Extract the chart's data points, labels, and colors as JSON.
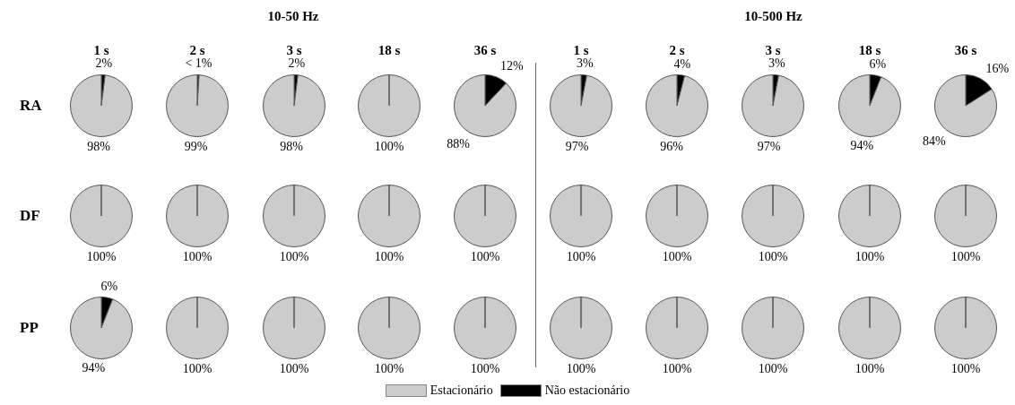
{
  "chart_data": [
    {
      "type": "pie",
      "title": "1 s",
      "annotations": [
        "RA"
      ],
      "legend": "bottom",
      "categories": [
        "Estacionário",
        "Não estacionário"
      ],
      "values": [
        98,
        2
      ],
      "colors": [
        "#cccccc",
        "#000000"
      ],
      "value_labels": [
        "98%",
        "2%"
      ]
    },
    {
      "type": "pie",
      "title": "2 s",
      "values": [
        99,
        1
      ],
      "colors": [
        "#cccccc",
        "#000000"
      ],
      "value_labels": [
        "99%",
        "< 1%"
      ]
    },
    {
      "type": "pie",
      "subtitle": "10-50 Hz",
      "title": "3 s",
      "values": [
        98,
        2
      ],
      "colors": [
        "#cccccc",
        "#000000"
      ],
      "value_labels": [
        "98%",
        "2%"
      ]
    },
    {
      "type": "pie",
      "title": "18 s",
      "values": [
        100,
        0
      ],
      "colors": [
        "#cccccc",
        "#000000"
      ],
      "value_labels": [
        "100%",
        null
      ]
    },
    {
      "type": "pie",
      "title": "36 s",
      "values": [
        88,
        12
      ],
      "colors": [
        "#cccccc",
        "#000000"
      ],
      "value_labels": [
        "88%",
        "12%"
      ]
    },
    {
      "type": "pie",
      "title": "1 s",
      "values": [
        97,
        3
      ],
      "colors": [
        "#cccccc",
        "#000000"
      ],
      "value_labels": [
        "97%",
        "3%"
      ]
    },
    {
      "type": "pie",
      "title": "2 s",
      "values": [
        96,
        4
      ],
      "colors": [
        "#cccccc",
        "#000000"
      ],
      "value_labels": [
        "96%",
        "4%"
      ]
    },
    {
      "type": "pie",
      "subtitle": "10-500 Hz",
      "title": "3 s",
      "values": [
        97,
        3
      ],
      "colors": [
        "#cccccc",
        "#000000"
      ],
      "value_labels": [
        "97%",
        "3%"
      ]
    },
    {
      "type": "pie",
      "title": "18 s",
      "values": [
        94,
        6
      ],
      "colors": [
        "#cccccc",
        "#000000"
      ],
      "value_labels": [
        "94%",
        "6%"
      ]
    },
    {
      "type": "pie",
      "title": "36 s",
      "values": [
        84,
        16
      ],
      "colors": [
        "#cccccc",
        "#000000"
      ],
      "value_labels": [
        "84%",
        "16%"
      ]
    },
    {
      "type": "pie",
      "annotations": [
        "DF"
      ],
      "values": [
        100,
        0
      ],
      "colors": [
        "#cccccc",
        "#000000"
      ],
      "value_labels": [
        "100%",
        null
      ]
    },
    {
      "type": "pie",
      "values": [
        100,
        0
      ],
      "colors": [
        "#cccccc",
        "#000000"
      ],
      "value_labels": [
        "100%",
        null
      ]
    },
    {
      "type": "pie",
      "values": [
        100,
        0
      ],
      "colors": [
        "#cccccc",
        "#000000"
      ],
      "value_labels": [
        "100%",
        null
      ]
    },
    {
      "type": "pie",
      "values": [
        100,
        0
      ],
      "colors": [
        "#cccccc",
        "#000000"
      ],
      "value_labels": [
        "100%",
        null
      ]
    },
    {
      "type": "pie",
      "values": [
        100,
        0
      ],
      "colors": [
        "#cccccc",
        "#000000"
      ],
      "value_labels": [
        "100%",
        null
      ]
    },
    {
      "type": "pie",
      "values": [
        100,
        0
      ],
      "colors": [
        "#cccccc",
        "#000000"
      ],
      "value_labels": [
        "100%",
        null
      ]
    },
    {
      "type": "pie",
      "values": [
        100,
        0
      ],
      "colors": [
        "#cccccc",
        "#000000"
      ],
      "value_labels": [
        "100%",
        null
      ]
    },
    {
      "type": "pie",
      "values": [
        100,
        0
      ],
      "colors": [
        "#cccccc",
        "#000000"
      ],
      "value_labels": [
        "100%",
        null
      ]
    },
    {
      "type": "pie",
      "values": [
        100,
        0
      ],
      "colors": [
        "#cccccc",
        "#000000"
      ],
      "value_labels": [
        "100%",
        null
      ]
    },
    {
      "type": "pie",
      "values": [
        100,
        0
      ],
      "colors": [
        "#cccccc",
        "#000000"
      ],
      "value_labels": [
        "100%",
        null
      ]
    },
    {
      "type": "pie",
      "annotations": [
        "PP"
      ],
      "values": [
        94,
        6
      ],
      "colors": [
        "#cccccc",
        "#000000"
      ],
      "value_labels": [
        "94%",
        "6%"
      ]
    },
    {
      "type": "pie",
      "values": [
        100,
        0
      ],
      "colors": [
        "#cccccc",
        "#000000"
      ],
      "value_labels": [
        "100%",
        null
      ]
    },
    {
      "type": "pie",
      "values": [
        100,
        0
      ],
      "colors": [
        "#cccccc",
        "#000000"
      ],
      "value_labels": [
        "100%",
        null
      ]
    },
    {
      "type": "pie",
      "values": [
        100,
        0
      ],
      "colors": [
        "#cccccc",
        "#000000"
      ],
      "value_labels": [
        "100%",
        null
      ]
    },
    {
      "type": "pie",
      "values": [
        100,
        0
      ],
      "colors": [
        "#cccccc",
        "#000000"
      ],
      "value_labels": [
        "100%",
        null
      ]
    },
    {
      "type": "pie",
      "values": [
        100,
        0
      ],
      "colors": [
        "#cccccc",
        "#000000"
      ],
      "value_labels": [
        "100%",
        null
      ]
    },
    {
      "type": "pie",
      "values": [
        100,
        0
      ],
      "colors": [
        "#cccccc",
        "#000000"
      ],
      "value_labels": [
        "100%",
        null
      ]
    },
    {
      "type": "pie",
      "values": [
        100,
        0
      ],
      "colors": [
        "#cccccc",
        "#000000"
      ],
      "value_labels": [
        "100%",
        null
      ]
    },
    {
      "type": "pie",
      "values": [
        100,
        0
      ],
      "colors": [
        "#cccccc",
        "#000000"
      ],
      "value_labels": [
        "100%",
        null
      ]
    },
    {
      "type": "pie",
      "values": [
        100,
        0
      ],
      "colors": [
        "#cccccc",
        "#000000"
      ],
      "value_labels": [
        "100%",
        null
      ]
    }
  ]
}
